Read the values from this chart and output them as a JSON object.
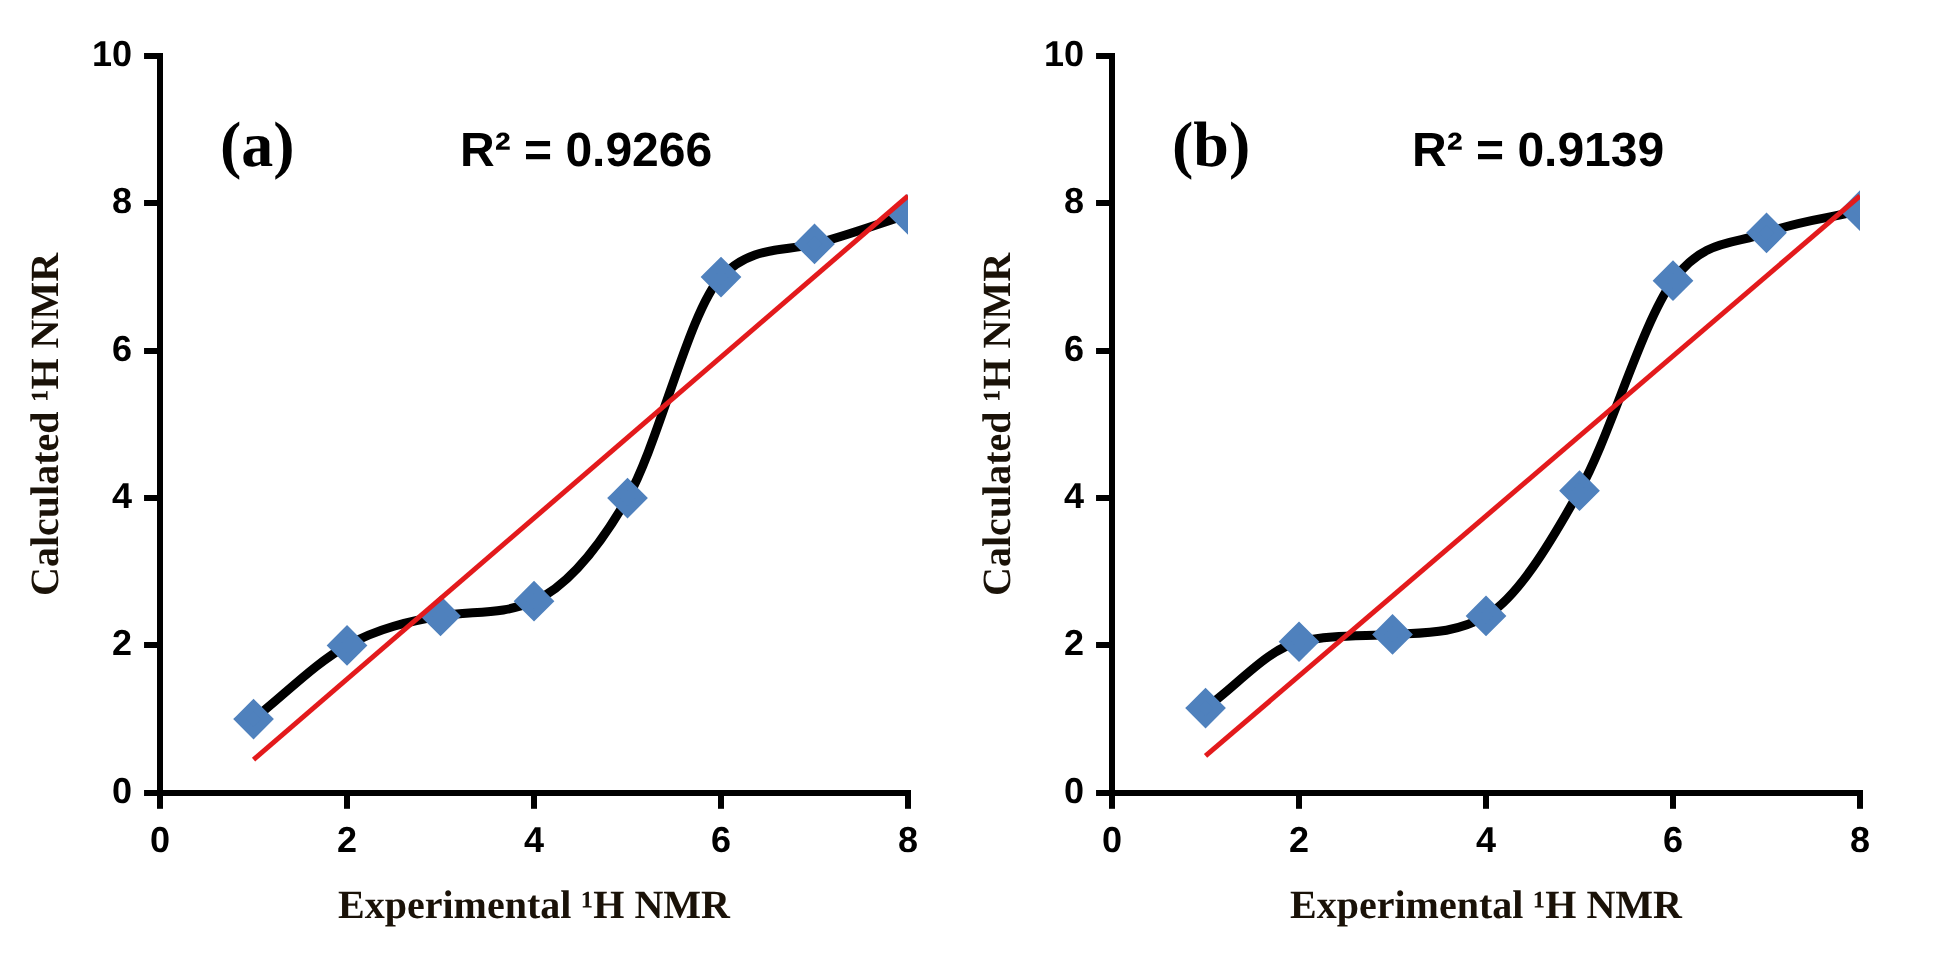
{
  "chart_data": [
    {
      "type": "line",
      "xlabel": "Experimental ¹H NMR",
      "ylabel": "Calculated ¹H NMR",
      "annotations": [
        "(a)",
        "R² = 0.9266"
      ],
      "xlim": [
        0,
        8
      ],
      "xticks": [
        0,
        2,
        4,
        6,
        8
      ],
      "ylim": [
        0,
        10
      ],
      "yticks": [
        0,
        2,
        4,
        6,
        8,
        10
      ],
      "grid": false,
      "legend": false,
      "series": [
        {
          "color": "#000000",
          "colors": [
            "#4f81bd",
            "#4f81bd",
            "#4f81bd",
            "#4f81bd",
            "#4f81bd",
            "#4f81bd",
            "#4f81bd",
            "#4f81bd"
          ],
          "marker": "diamond",
          "x": [
            1,
            2,
            3,
            4,
            5,
            6,
            7,
            8
          ],
          "values": [
            1.0,
            2.0,
            2.4,
            2.6,
            4.0,
            7.0,
            7.45,
            7.85
          ]
        },
        {
          "color": "#e31a1c",
          "marker": "none",
          "x": [
            1,
            8
          ],
          "values": [
            0.45,
            8.1
          ]
        }
      ]
    },
    {
      "type": "line",
      "xlabel": "Experimental ¹H NMR",
      "ylabel": "Calculated ¹H NMR",
      "annotations": [
        "(b)",
        "R² = 0.9139"
      ],
      "xlim": [
        0,
        8
      ],
      "xticks": [
        0,
        2,
        4,
        6,
        8
      ],
      "ylim": [
        0,
        10
      ],
      "yticks": [
        0,
        2,
        4,
        6,
        8,
        10
      ],
      "grid": false,
      "legend": false,
      "series": [
        {
          "color": "#000000",
          "colors": [
            "#4f81bd",
            "#4f81bd",
            "#4f81bd",
            "#4f81bd",
            "#4f81bd",
            "#4f81bd",
            "#4f81bd",
            "#4f81bd"
          ],
          "marker": "diamond",
          "x": [
            1,
            2,
            3,
            4,
            5,
            6,
            7,
            8
          ],
          "values": [
            1.15,
            2.05,
            2.15,
            2.4,
            4.1,
            6.95,
            7.6,
            7.9
          ]
        },
        {
          "color": "#e31a1c",
          "marker": "none",
          "x": [
            1,
            8
          ],
          "values": [
            0.5,
            8.1
          ]
        }
      ]
    }
  ]
}
